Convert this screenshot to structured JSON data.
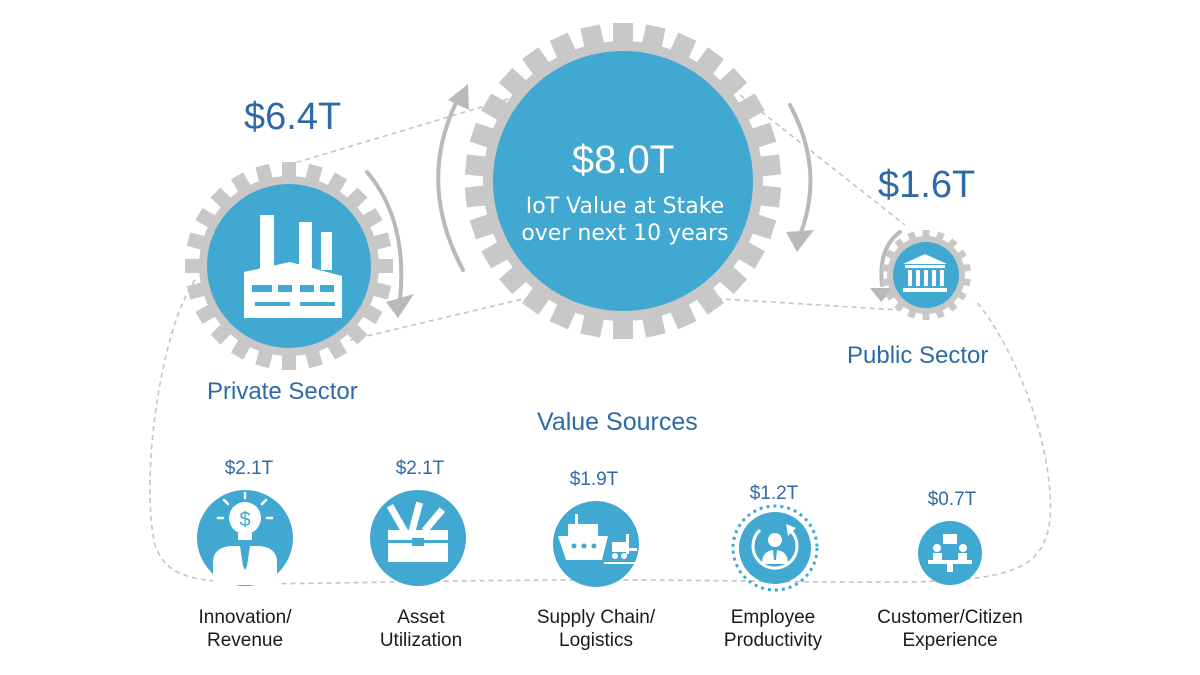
{
  "main": {
    "value": "$8.0T",
    "line1": "IoT Value at Stake",
    "line2": "over next 10 years"
  },
  "private_sector": {
    "value": "$6.4T",
    "label": "Private Sector",
    "icon": "factory-icon"
  },
  "public_sector": {
    "value": "$1.6T",
    "label": "Public Sector",
    "icon": "government-building-icon"
  },
  "value_sources": {
    "title": "Value Sources",
    "items": [
      {
        "value": "$2.1T",
        "line1": "Innovation/",
        "line2": "Revenue",
        "icon": "innovation-lightbulb-icon"
      },
      {
        "value": "$2.1T",
        "line1": "Asset",
        "line2": "Utilization",
        "icon": "toolbox-icon"
      },
      {
        "value": "$1.9T",
        "line1": "Supply Chain/",
        "line2": "Logistics",
        "icon": "ship-forklift-icon"
      },
      {
        "value": "$1.2T",
        "line1": "Employee",
        "line2": "Productivity",
        "icon": "employee-cycle-icon"
      },
      {
        "value": "$0.7T",
        "line1": "Customer/Citizen",
        "line2": "Experience",
        "icon": "customer-service-icon"
      }
    ]
  },
  "colors": {
    "primary_blue": "#41a8d1",
    "text_blue": "#2e6aa6",
    "gear_gray": "#c8c8c8",
    "dash_gray": "#c4c4c4"
  }
}
